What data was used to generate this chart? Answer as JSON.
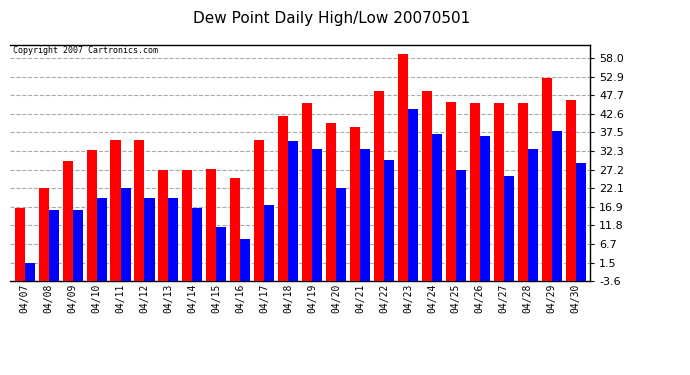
{
  "title": "Dew Point Daily High/Low 20070501",
  "copyright": "Copyright 2007 Cartronics.com",
  "dates": [
    "04/07",
    "04/08",
    "04/09",
    "04/10",
    "04/11",
    "04/12",
    "04/13",
    "04/14",
    "04/15",
    "04/16",
    "04/17",
    "04/18",
    "04/19",
    "04/20",
    "04/21",
    "04/22",
    "04/23",
    "04/24",
    "04/25",
    "04/26",
    "04/27",
    "04/28",
    "04/29",
    "04/30"
  ],
  "highs": [
    16.5,
    22.0,
    29.5,
    32.5,
    35.5,
    35.5,
    27.0,
    27.0,
    27.5,
    25.0,
    35.5,
    42.0,
    45.5,
    40.0,
    39.0,
    49.0,
    59.0,
    49.0,
    46.0,
    45.5,
    45.5,
    45.5,
    52.5,
    46.5
  ],
  "lows": [
    1.5,
    16.0,
    16.0,
    19.5,
    22.0,
    19.5,
    19.5,
    16.5,
    11.5,
    8.0,
    17.5,
    35.0,
    33.0,
    22.0,
    33.0,
    30.0,
    44.0,
    37.0,
    27.0,
    36.5,
    25.5,
    33.0,
    38.0,
    29.0
  ],
  "high_color": "#ff0000",
  "low_color": "#0000ff",
  "bg_color": "#ffffff",
  "plot_bg_color": "#ffffff",
  "grid_color": "#aaaaaa",
  "yticks": [
    -3.6,
    1.5,
    6.7,
    11.8,
    16.9,
    22.1,
    27.2,
    32.3,
    37.5,
    42.6,
    47.7,
    52.9,
    58.0
  ],
  "ylim": [
    -3.6,
    61.6
  ],
  "bar_width": 0.42,
  "title_fontsize": 11
}
